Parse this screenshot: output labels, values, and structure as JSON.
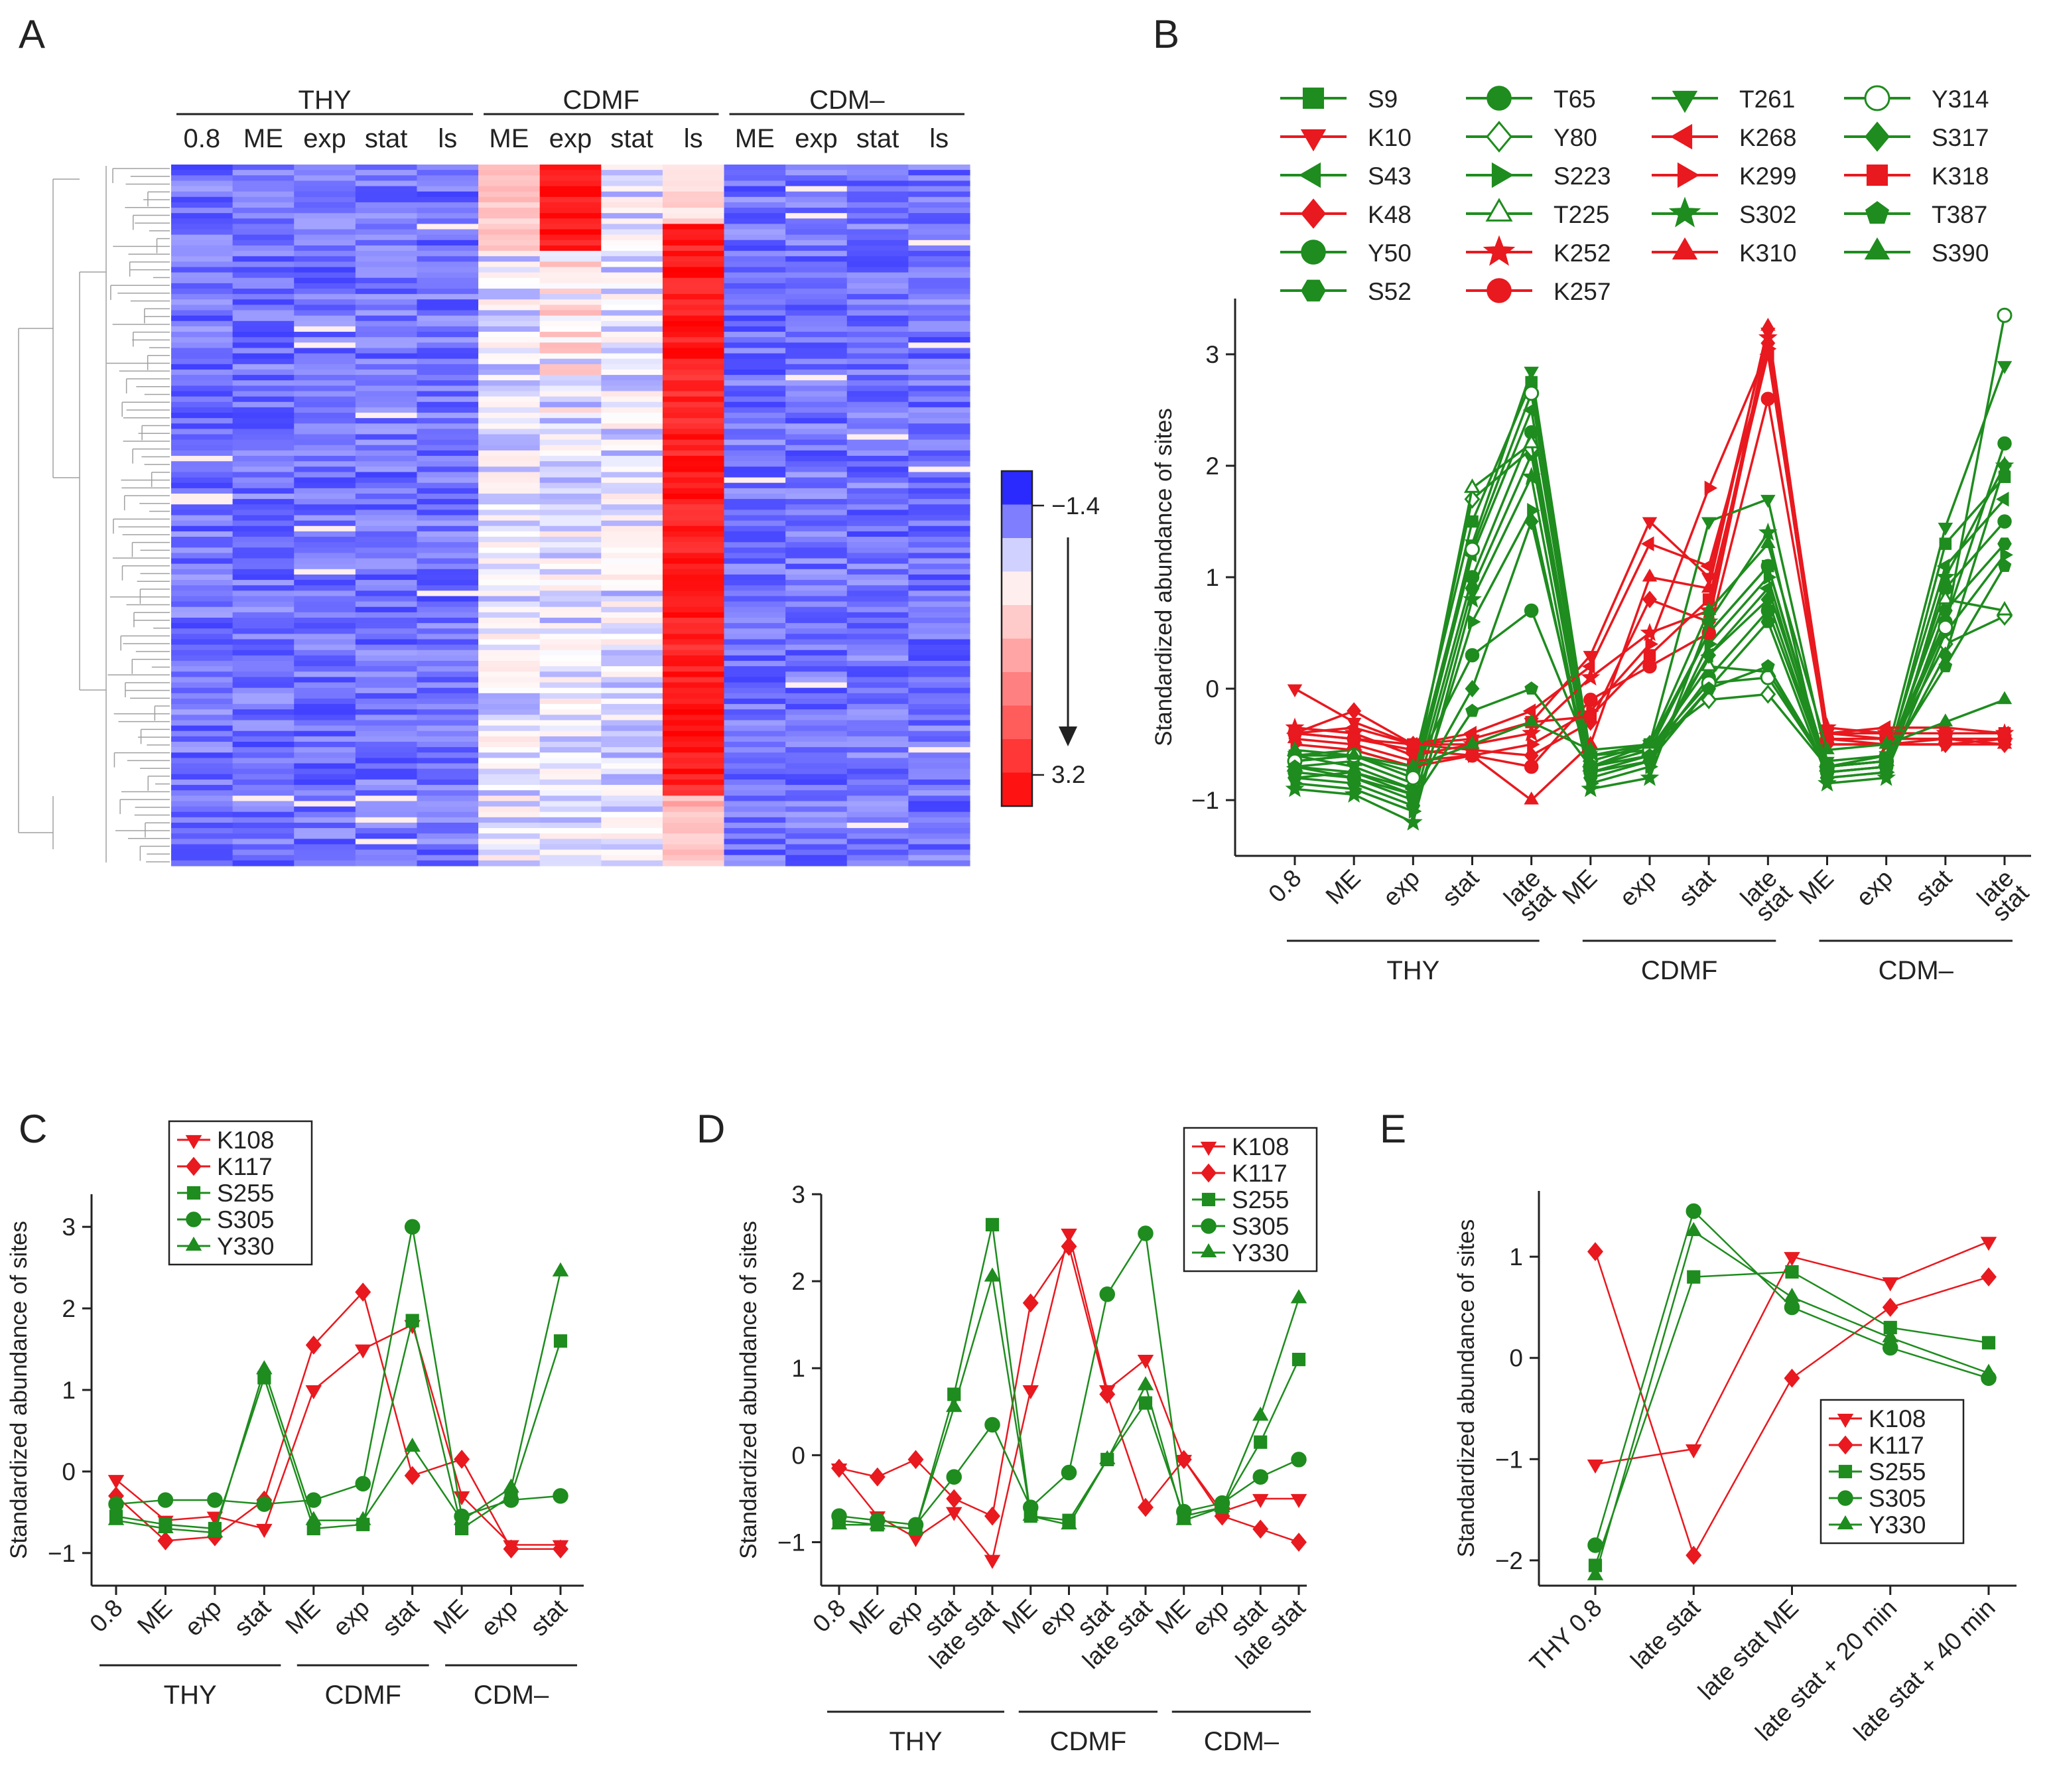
{
  "colors": {
    "red": "#e8191f",
    "green": "#1e8c1e",
    "blue": "#1010ff",
    "gray": "#a0a0a0"
  },
  "panels": {
    "A": "A",
    "B": "B",
    "C": "C",
    "D": "D",
    "E": "E"
  },
  "heatmap": {
    "groups": [
      "THY",
      "CDMF",
      "CDM–"
    ],
    "columns": [
      "0.8",
      "ME",
      "exp",
      "stat",
      "ls",
      "ME",
      "exp",
      "stat",
      "ls",
      "ME",
      "exp",
      "stat",
      "ls"
    ],
    "colorbar": {
      "min_label": "−1.4",
      "max_label": "3.2",
      "range": [
        -1.4,
        3.2
      ]
    }
  },
  "chart_data": [
    {
      "id": "B",
      "type": "line",
      "ylabel": "Standardized abundance of sites",
      "ylim": [
        -1.5,
        3.5
      ],
      "yticks": [
        -1,
        0,
        1,
        2,
        3
      ],
      "categories": [
        "0.8",
        "ME",
        "exp",
        "stat",
        "late stat",
        "ME",
        "exp",
        "stat",
        "late stat",
        "ME",
        "exp",
        "stat",
        "late stat"
      ],
      "groups": [
        {
          "label": "THY",
          "from": 0,
          "to": 4
        },
        {
          "label": "CDMF",
          "from": 5,
          "to": 8
        },
        {
          "label": "CDM–",
          "from": 9,
          "to": 12
        }
      ],
      "legend_position": "top",
      "series": [
        {
          "name": "S9",
          "color": "green",
          "marker": "square",
          "values": [
            -0.6,
            -0.55,
            -0.7,
            1.5,
            2.75,
            -0.7,
            -0.5,
            0.5,
            1.1,
            -0.75,
            -0.7,
            1.3,
            1.9
          ]
        },
        {
          "name": "K10",
          "color": "red",
          "marker": "tri-down",
          "values": [
            0.0,
            -0.3,
            -0.5,
            -0.45,
            -0.3,
            0.3,
            1.5,
            1.0,
            3.2,
            -0.4,
            -0.45,
            -0.45,
            -0.45
          ]
        },
        {
          "name": "S43",
          "color": "green",
          "marker": "tri-left",
          "values": [
            -0.7,
            -0.75,
            -0.9,
            1.2,
            2.5,
            -0.7,
            -0.6,
            0.3,
            0.9,
            -0.7,
            -0.65,
            1.1,
            1.7
          ]
        },
        {
          "name": "K48",
          "color": "red",
          "marker": "diamond",
          "values": [
            -0.4,
            -0.2,
            -0.5,
            -0.55,
            -0.6,
            -0.3,
            0.8,
            0.6,
            3.1,
            -0.5,
            -0.5,
            -0.5,
            -0.5
          ]
        },
        {
          "name": "Y50",
          "color": "green",
          "marker": "circle-half",
          "values": [
            -0.75,
            -0.8,
            -0.95,
            1.0,
            2.3,
            -0.75,
            -0.6,
            0.1,
            0.7,
            -0.75,
            -0.7,
            0.9,
            1.5
          ]
        },
        {
          "name": "S52",
          "color": "green",
          "marker": "hexagon",
          "values": [
            -0.8,
            -0.85,
            -1.05,
            0.9,
            2.1,
            -0.8,
            -0.65,
            0.0,
            0.6,
            -0.8,
            -0.75,
            0.7,
            1.3
          ]
        },
        {
          "name": "T65",
          "color": "green",
          "marker": "circle",
          "values": [
            -0.65,
            -0.6,
            -0.75,
            0.3,
            0.7,
            -0.6,
            -0.55,
            0.5,
            1.1,
            -0.7,
            -0.6,
            0.6,
            2.2
          ]
        },
        {
          "name": "Y80",
          "color": "green",
          "marker": "diamond-open",
          "values": [
            -0.6,
            -0.6,
            -0.8,
            1.7,
            2.15,
            -0.65,
            -0.5,
            -0.1,
            -0.05,
            -0.7,
            -0.6,
            0.4,
            0.65
          ]
        },
        {
          "name": "S223",
          "color": "green",
          "marker": "tri-right",
          "values": [
            -0.85,
            -0.9,
            -1.1,
            0.6,
            1.6,
            -0.85,
            -0.7,
            0.4,
            1.0,
            -0.8,
            -0.75,
            0.5,
            1.2
          ]
        },
        {
          "name": "T225",
          "color": "green",
          "marker": "tri-up-open",
          "values": [
            -0.7,
            -0.65,
            -0.85,
            1.8,
            2.2,
            -0.7,
            -0.55,
            0.2,
            0.15,
            -0.7,
            -0.65,
            0.8,
            0.7
          ]
        },
        {
          "name": "K252",
          "color": "red",
          "marker": "star",
          "values": [
            -0.35,
            -0.4,
            -0.6,
            -0.5,
            -0.4,
            0.1,
            0.5,
            0.7,
            3.15,
            -0.35,
            -0.4,
            -0.4,
            -0.4
          ]
        },
        {
          "name": "K257",
          "color": "red",
          "marker": "circle",
          "values": [
            -0.4,
            -0.45,
            -0.55,
            -0.6,
            -0.7,
            -0.1,
            0.2,
            0.5,
            2.6,
            -0.45,
            -0.45,
            -0.45,
            -0.45
          ]
        },
        {
          "name": "T261",
          "color": "green",
          "marker": "tri-down",
          "values": [
            -0.6,
            -0.7,
            -0.9,
            1.3,
            2.85,
            -0.6,
            -0.5,
            1.5,
            1.7,
            -0.65,
            -0.6,
            1.45,
            2.9
          ]
        },
        {
          "name": "K268",
          "color": "red",
          "marker": "tri-left",
          "values": [
            -0.4,
            -0.35,
            -0.5,
            -0.4,
            -0.2,
            0.2,
            1.3,
            1.1,
            3.0,
            -0.4,
            -0.35,
            -0.35,
            -0.4
          ]
        },
        {
          "name": "K299",
          "color": "red",
          "marker": "tri-right",
          "values": [
            -0.5,
            -0.55,
            -0.7,
            -0.6,
            -0.5,
            -0.2,
            0.4,
            1.8,
            3.05,
            -0.5,
            -0.5,
            -0.5,
            -0.45
          ]
        },
        {
          "name": "S302",
          "color": "green",
          "marker": "star",
          "values": [
            -0.9,
            -0.95,
            -1.2,
            0.8,
            1.9,
            -0.9,
            -0.8,
            0.6,
            1.4,
            -0.85,
            -0.8,
            1.0,
            2.0
          ]
        },
        {
          "name": "K310",
          "color": "red",
          "marker": "tri-up",
          "values": [
            -0.45,
            -0.5,
            -0.65,
            -0.6,
            -1.0,
            -0.5,
            1.0,
            0.9,
            3.25,
            -0.45,
            -0.5,
            -0.45,
            -0.5
          ]
        },
        {
          "name": "Y314",
          "color": "green",
          "marker": "circle-open",
          "values": [
            -0.65,
            -0.6,
            -0.8,
            1.25,
            2.65,
            -0.7,
            -0.55,
            0.05,
            0.1,
            -0.7,
            -0.65,
            0.55,
            3.35
          ]
        },
        {
          "name": "S317",
          "color": "green",
          "marker": "diamond",
          "values": [
            -0.8,
            -0.75,
            -0.95,
            0.0,
            1.5,
            -0.75,
            -0.65,
            0.3,
            0.8,
            -0.75,
            -0.7,
            0.3,
            2.0
          ]
        },
        {
          "name": "K318",
          "color": "red",
          "marker": "square",
          "values": [
            -0.4,
            -0.45,
            -0.5,
            -0.5,
            -0.3,
            -0.25,
            0.3,
            0.8,
            3.0,
            -0.4,
            -0.4,
            -0.4,
            -0.4
          ]
        },
        {
          "name": "T387",
          "color": "green",
          "marker": "pentagon",
          "values": [
            -0.7,
            -0.8,
            -1.0,
            -0.2,
            0.0,
            -0.7,
            -0.6,
            0.0,
            0.2,
            -0.7,
            -0.65,
            0.2,
            1.1
          ]
        },
        {
          "name": "S390",
          "color": "green",
          "marker": "tri-up",
          "values": [
            -0.55,
            -0.6,
            -0.7,
            -0.5,
            -0.3,
            -0.55,
            -0.5,
            0.7,
            1.3,
            -0.55,
            -0.5,
            -0.3,
            -0.1
          ]
        }
      ]
    },
    {
      "id": "C",
      "type": "line",
      "ylabel": "Standardized abundance of sites",
      "ylim": [
        -1.4,
        3.4
      ],
      "yticks": [
        -1,
        0,
        1,
        2,
        3
      ],
      "categories": [
        "0.8",
        "ME",
        "exp",
        "stat",
        "ME",
        "exp",
        "stat",
        "ME",
        "exp",
        "stat"
      ],
      "groups": [
        {
          "label": "THY",
          "from": 0,
          "to": 3
        },
        {
          "label": "CDMF",
          "from": 4,
          "to": 6
        },
        {
          "label": "CDM–",
          "from": 7,
          "to": 9
        }
      ],
      "legend_position": "top-left",
      "series": [
        {
          "name": "K108",
          "color": "red",
          "marker": "tri-down",
          "values": [
            -0.1,
            -0.6,
            -0.55,
            -0.7,
            1.0,
            1.5,
            1.8,
            -0.3,
            -0.9,
            -0.9
          ]
        },
        {
          "name": "K117",
          "color": "red",
          "marker": "diamond",
          "values": [
            -0.3,
            -0.85,
            -0.8,
            -0.35,
            1.55,
            2.2,
            -0.05,
            0.15,
            -0.95,
            -0.95
          ]
        },
        {
          "name": "S255",
          "color": "green",
          "marker": "square",
          "values": [
            -0.55,
            -0.65,
            -0.7,
            1.15,
            -0.7,
            -0.65,
            1.85,
            -0.7,
            -0.3,
            1.6
          ]
        },
        {
          "name": "S305",
          "color": "green",
          "marker": "circle",
          "values": [
            -0.4,
            -0.35,
            -0.35,
            -0.4,
            -0.35,
            -0.15,
            3.0,
            -0.55,
            -0.35,
            -0.3
          ]
        },
        {
          "name": "Y330",
          "color": "green",
          "marker": "tri-up",
          "values": [
            -0.6,
            -0.7,
            -0.75,
            1.25,
            -0.6,
            -0.6,
            0.3,
            -0.6,
            -0.2,
            2.45
          ]
        }
      ]
    },
    {
      "id": "D",
      "type": "line",
      "ylabel": "Standardized abundance of sites",
      "ylim": [
        -1.5,
        3.0
      ],
      "yticks": [
        -1,
        0,
        1,
        2,
        3
      ],
      "categories": [
        "0.8",
        "ME",
        "exp",
        "stat",
        "late stat",
        "ME",
        "exp",
        "stat",
        "late stat",
        "ME",
        "exp",
        "stat",
        "late stat"
      ],
      "groups": [
        {
          "label": "THY",
          "from": 0,
          "to": 4
        },
        {
          "label": "CDMF",
          "from": 5,
          "to": 8
        },
        {
          "label": "CDM–",
          "from": 9,
          "to": 12
        }
      ],
      "legend_position": "top-right",
      "series": [
        {
          "name": "K108",
          "color": "red",
          "marker": "tri-down",
          "values": [
            -0.15,
            -0.7,
            -0.95,
            -0.65,
            -1.2,
            0.75,
            2.55,
            0.75,
            1.1,
            -0.05,
            -0.65,
            -0.5,
            -0.5
          ]
        },
        {
          "name": "K117",
          "color": "red",
          "marker": "diamond",
          "values": [
            -0.15,
            -0.25,
            -0.05,
            -0.5,
            -0.7,
            1.75,
            2.4,
            0.7,
            -0.6,
            -0.05,
            -0.7,
            -0.85,
            -1.0
          ]
        },
        {
          "name": "S255",
          "color": "green",
          "marker": "square",
          "values": [
            -0.75,
            -0.8,
            -0.85,
            0.7,
            2.65,
            -0.7,
            -0.75,
            -0.05,
            0.6,
            -0.7,
            -0.6,
            0.15,
            1.1
          ]
        },
        {
          "name": "S305",
          "color": "green",
          "marker": "circle",
          "values": [
            -0.7,
            -0.75,
            -0.8,
            -0.25,
            0.35,
            -0.6,
            -0.2,
            1.85,
            2.55,
            -0.65,
            -0.55,
            -0.25,
            -0.05
          ]
        },
        {
          "name": "Y330",
          "color": "green",
          "marker": "tri-up",
          "values": [
            -0.8,
            -0.8,
            -0.85,
            0.55,
            2.05,
            -0.7,
            -0.8,
            -0.05,
            0.8,
            -0.75,
            -0.6,
            0.45,
            1.8
          ]
        }
      ]
    },
    {
      "id": "E",
      "type": "line",
      "ylabel": "Standardized abundance of sites",
      "ylim": [
        -2.25,
        1.65
      ],
      "yticks": [
        -2,
        -1,
        0,
        1
      ],
      "categories": [
        "THY 0.8",
        "late stat",
        "late stat ME",
        "late stat + 20 min",
        "late stat  + 40 min"
      ],
      "groups": [],
      "legend_position": "bottom-right",
      "series": [
        {
          "name": "K108",
          "color": "red",
          "marker": "tri-down",
          "values": [
            -1.05,
            -0.9,
            1.0,
            0.75,
            1.15
          ]
        },
        {
          "name": "K117",
          "color": "red",
          "marker": "diamond",
          "values": [
            1.05,
            -1.95,
            -0.2,
            0.5,
            0.8
          ]
        },
        {
          "name": "S255",
          "color": "green",
          "marker": "square",
          "values": [
            -2.05,
            0.8,
            0.85,
            0.3,
            0.15
          ]
        },
        {
          "name": "S305",
          "color": "green",
          "marker": "circle",
          "values": [
            -1.85,
            1.45,
            0.5,
            0.1,
            -0.2
          ]
        },
        {
          "name": "Y330",
          "color": "green",
          "marker": "tri-up",
          "values": [
            -2.15,
            1.25,
            0.6,
            0.2,
            -0.15
          ]
        }
      ]
    }
  ]
}
